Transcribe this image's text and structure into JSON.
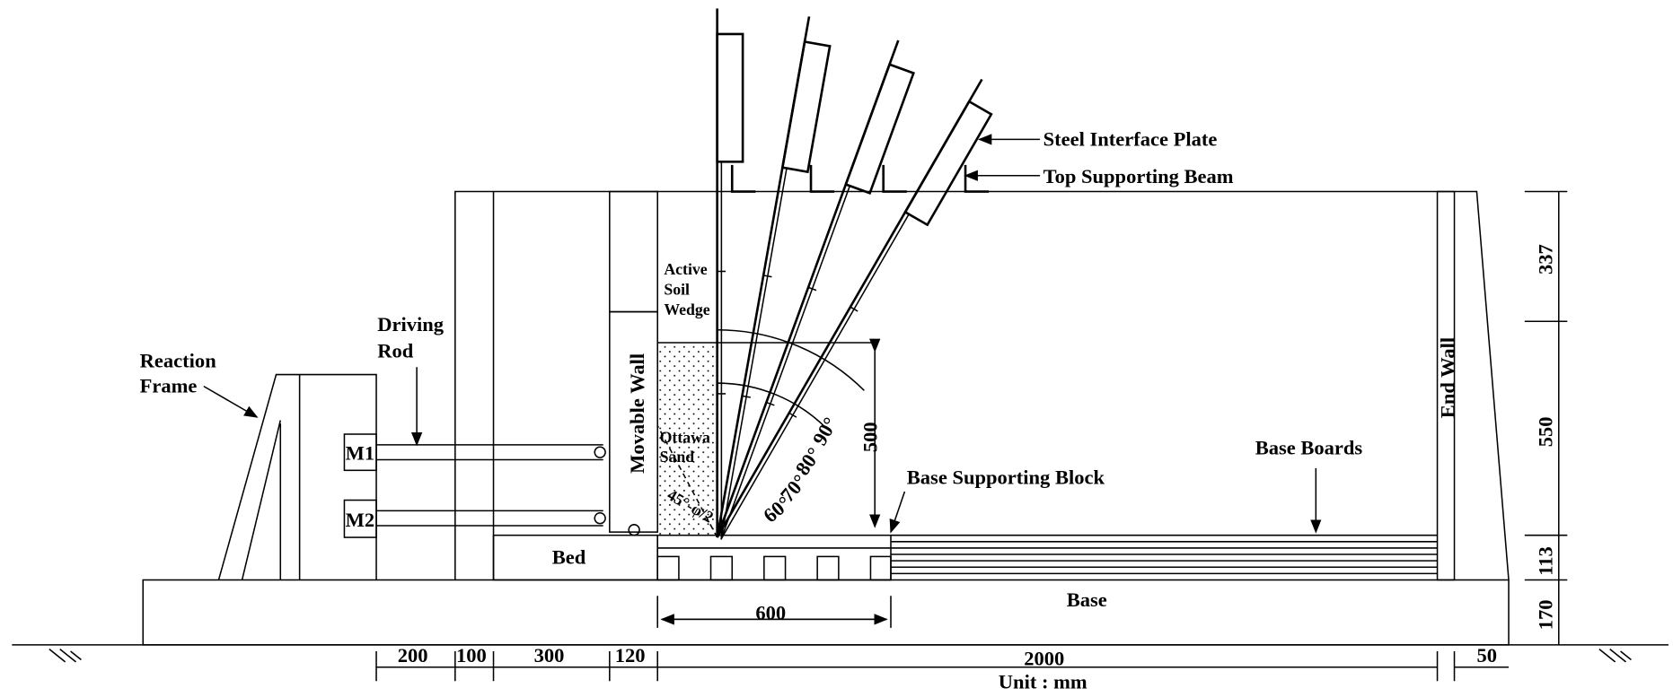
{
  "labels": {
    "steel_interface_plate": "Steel Interface Plate",
    "top_supporting_beam": "Top Supporting Beam",
    "active_soil_wedge": [
      "Active",
      "Soil",
      "Wedge"
    ],
    "driving_rod": [
      "Driving",
      "Rod"
    ],
    "reaction_frame": [
      "Reaction",
      "Frame"
    ],
    "movable_wall": "Movable Wall",
    "m1": "M1",
    "m2": "M2",
    "ottawa_sand": [
      "Ottawa",
      "Sand"
    ],
    "failure_angle": "45°-φ/2",
    "base_supporting_block": "Base Supporting Block",
    "base_boards": "Base Boards",
    "end_wall": "End Wall",
    "bed": "Bed",
    "base": "Base",
    "unit": "Unit : mm"
  },
  "angles": [
    "90°",
    "80°",
    "70°",
    "60°"
  ],
  "dimensions": {
    "fill_height": 500,
    "block_width": 600,
    "right": [
      337,
      550,
      113,
      170
    ],
    "bottom": [
      200,
      100,
      300,
      120,
      2000,
      50
    ]
  }
}
